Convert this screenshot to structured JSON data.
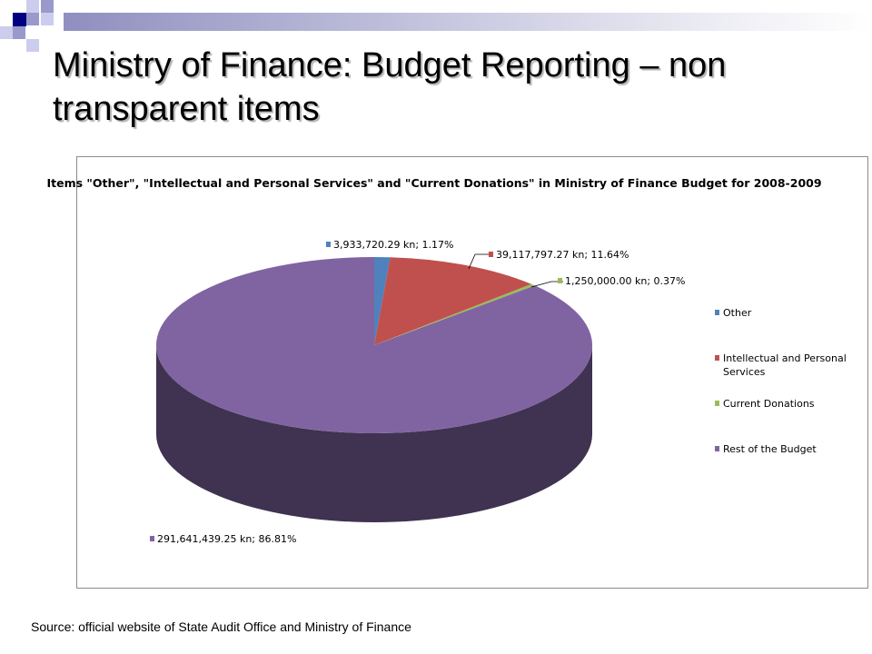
{
  "slide": {
    "title": "Ministry of Finance: Budget Reporting – non transparent items",
    "source": "Source: official website of State Audit Office and Ministry of Finance"
  },
  "colors": {
    "deco_dark": "#000080",
    "deco_mid": "#9999cc",
    "deco_light": "#ccccee"
  },
  "chart_data": {
    "type": "pie",
    "three_d": true,
    "title": "Items \"Other\", \"Intellectual and Personal Services\" and \"Current Donations\" in Ministry of Finance Budget for 2008-2009",
    "legend_position": "right",
    "series": [
      {
        "name": "Other",
        "value": 3933720.29,
        "percent": 1.17,
        "label": "3,933,720.29 kn; 1.17%",
        "color": "#4f81bd"
      },
      {
        "name": "Intellectual and Personal Services",
        "value": 39117797.27,
        "percent": 11.64,
        "label": "39,117,797.27 kn; 11.64%",
        "color": "#c0504d"
      },
      {
        "name": "Current Donations",
        "value": 1250000.0,
        "percent": 0.37,
        "label": "1,250,000.00 kn; 0.37%",
        "color": "#9bbb59"
      },
      {
        "name": "Rest of the Budget",
        "value": 291641439.25,
        "percent": 86.81,
        "label": "291,641,439.25 kn; 86.81%",
        "color": "#8064a2"
      }
    ]
  }
}
